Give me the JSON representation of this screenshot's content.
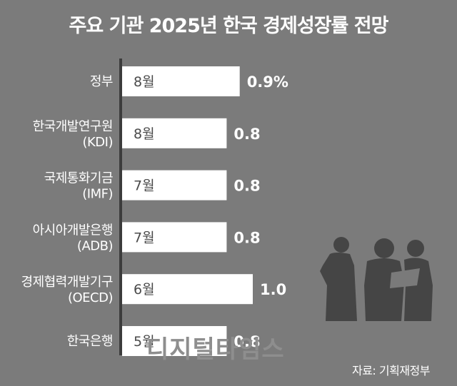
{
  "title": "주요 기관 2025년 한국 경제성장률 전망",
  "source": "자료: 기획재정부",
  "watermark": "디지털타임스",
  "colors": {
    "background": "#7b7b7b",
    "bar": "#ffffff",
    "axis": "#3c3c3c",
    "silhouette": "#454545"
  },
  "silhouette_icon": "business-people-silhouette-icon",
  "chart_data": {
    "type": "bar",
    "orientation": "horizontal",
    "title": "주요 기관 2025년 한국 경제성장률 전망",
    "categories": [
      [
        "정부"
      ],
      [
        "한국개발연구원",
        "(KDI)"
      ],
      [
        "국제통화기금",
        "(IMF)"
      ],
      [
        "아시아개발은행",
        "(ADB)"
      ],
      [
        "경제협력개발기구",
        "(OECD)"
      ],
      [
        "한국은행"
      ]
    ],
    "months": [
      "8월",
      "8월",
      "7월",
      "7월",
      "6월",
      "5월"
    ],
    "values": [
      0.9,
      0.8,
      0.8,
      0.8,
      1.0,
      0.8
    ],
    "value_labels": [
      "0.9%",
      "0.8",
      "0.8",
      "0.8",
      "1.0",
      "0.8"
    ],
    "xlim": [
      0,
      1.0
    ],
    "grid": false,
    "legend": "none"
  }
}
